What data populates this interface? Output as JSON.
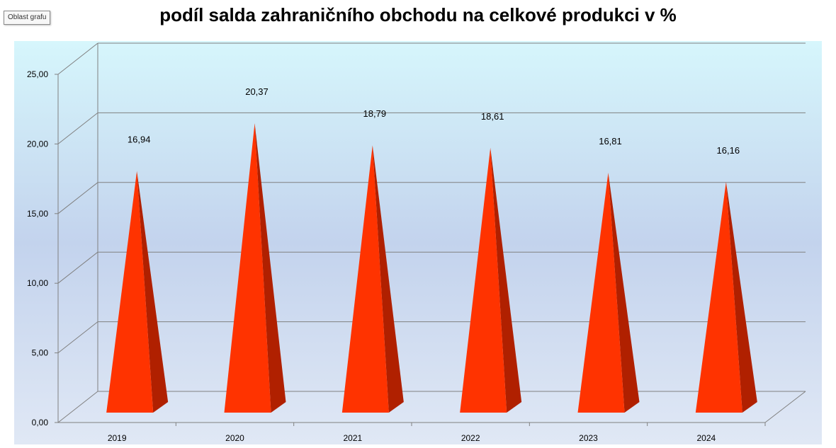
{
  "tooltip": "Oblast grafu",
  "chart_data": {
    "type": "bar",
    "bar_shape": "cone",
    "title": "podíl salda zahraničního obchodu na celkové produkci v %",
    "categories": [
      "2019",
      "2020",
      "2021",
      "2022",
      "2023",
      "2024"
    ],
    "values": [
      16.94,
      20.37,
      18.79,
      18.61,
      16.81,
      16.16
    ],
    "data_labels": [
      "16,94",
      "20,37",
      "18,79",
      "18,61",
      "16,81",
      "16,16"
    ],
    "y_ticks": [
      "0,00",
      "5,00",
      "10,00",
      "15,00",
      "20,00",
      "25,00"
    ],
    "ylim": [
      0,
      25
    ],
    "grid": true,
    "colors": {
      "bar_front": "#ff3300",
      "bar_side": "#b02000",
      "plot_top": "#d6f6fc",
      "plot_bottom": "#e0e8f5",
      "plot_mid": "#c3d3ed",
      "gridline": "#808080"
    }
  }
}
